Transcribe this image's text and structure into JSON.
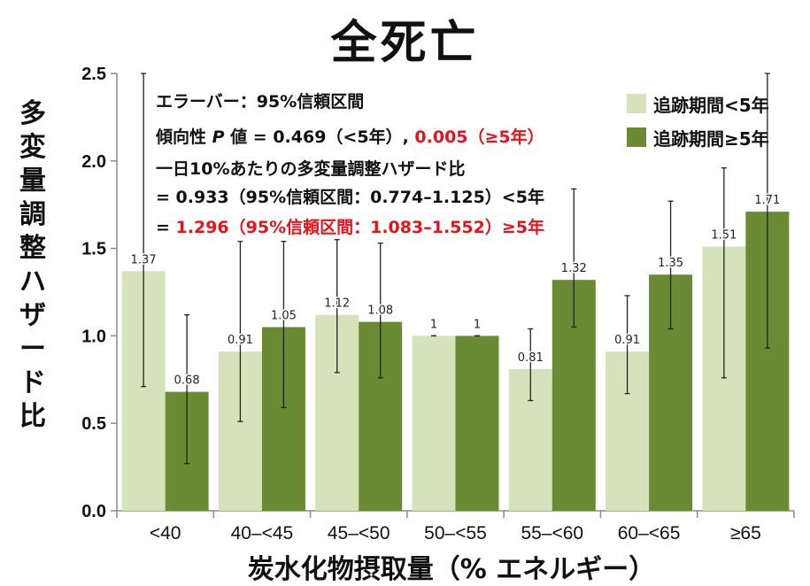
{
  "title": "全死亡",
  "ylabel_chars": [
    "多",
    "変",
    "量",
    "調",
    "整",
    "ハ",
    "ザ",
    "ー",
    "ド",
    "比"
  ],
  "xlabel": "炭水化物摂取量（% エネルギー）",
  "annotations": {
    "line1": "エラーバー：95%信頼区間",
    "line2_prefix": "傾向性 ",
    "line2_p": "P",
    "line2_mid": " 値 = 0.469（<5年）, ",
    "line2_red": "0.005（≥5年）",
    "line3": "一日10%あたりの多変量調整ハザード比",
    "line4": "= 0.933（95%信頼区間：0.774–1.125）<5年",
    "line5_prefix": "= ",
    "line5_red": "1.296（95%信頼区間：1.083–1.552）≥5年"
  },
  "colors": {
    "light": "#d5e3bb",
    "dark": "#6b8a34",
    "red": "#e3141b",
    "axis": "#8a8a8a"
  },
  "chart_data": {
    "type": "bar",
    "title": "全死亡",
    "xlabel": "炭水化物摂取量（% エネルギー）",
    "ylabel": "多変量調整ハザード比",
    "ylim": [
      0,
      2.5
    ],
    "yticks": [
      "0.0",
      "0.5",
      "1.0",
      "1.5",
      "2.0",
      "2.5"
    ],
    "ytick_values": [
      0,
      0.5,
      1.0,
      1.5,
      2.0,
      2.5
    ],
    "categories": [
      "<40",
      "40–<45",
      "45–<50",
      "50–<55",
      "55–<60",
      "60–<65",
      "≥65"
    ],
    "legend_position": "top-right",
    "grid": false,
    "series": [
      {
        "name": "追跡期間<5年",
        "values": [
          1.37,
          0.91,
          1.12,
          1,
          0.81,
          0.91,
          1.51
        ],
        "labels": [
          "1.37",
          "0.91",
          "1.12",
          "1",
          "0.81",
          "0.91",
          "1.51"
        ],
        "ci_low": [
          0.71,
          0.51,
          0.79,
          1.0,
          0.63,
          0.67,
          0.76
        ],
        "ci_high": [
          2.5,
          1.54,
          1.55,
          1.0,
          1.04,
          1.23,
          1.96
        ],
        "color": "#d5e3bb"
      },
      {
        "name": "追跡期間≥5年",
        "values": [
          0.68,
          1.05,
          1.08,
          1,
          1.32,
          1.35,
          1.71
        ],
        "labels": [
          "0.68",
          "1.05",
          "1.08",
          "1",
          "1.32",
          "1.35",
          "1.71"
        ],
        "ci_low": [
          0.27,
          0.59,
          0.76,
          1.0,
          1.05,
          1.04,
          0.93
        ],
        "ci_high": [
          1.12,
          1.54,
          1.53,
          1.0,
          1.84,
          1.77,
          2.5
        ],
        "color": "#6b8a34"
      }
    ]
  }
}
